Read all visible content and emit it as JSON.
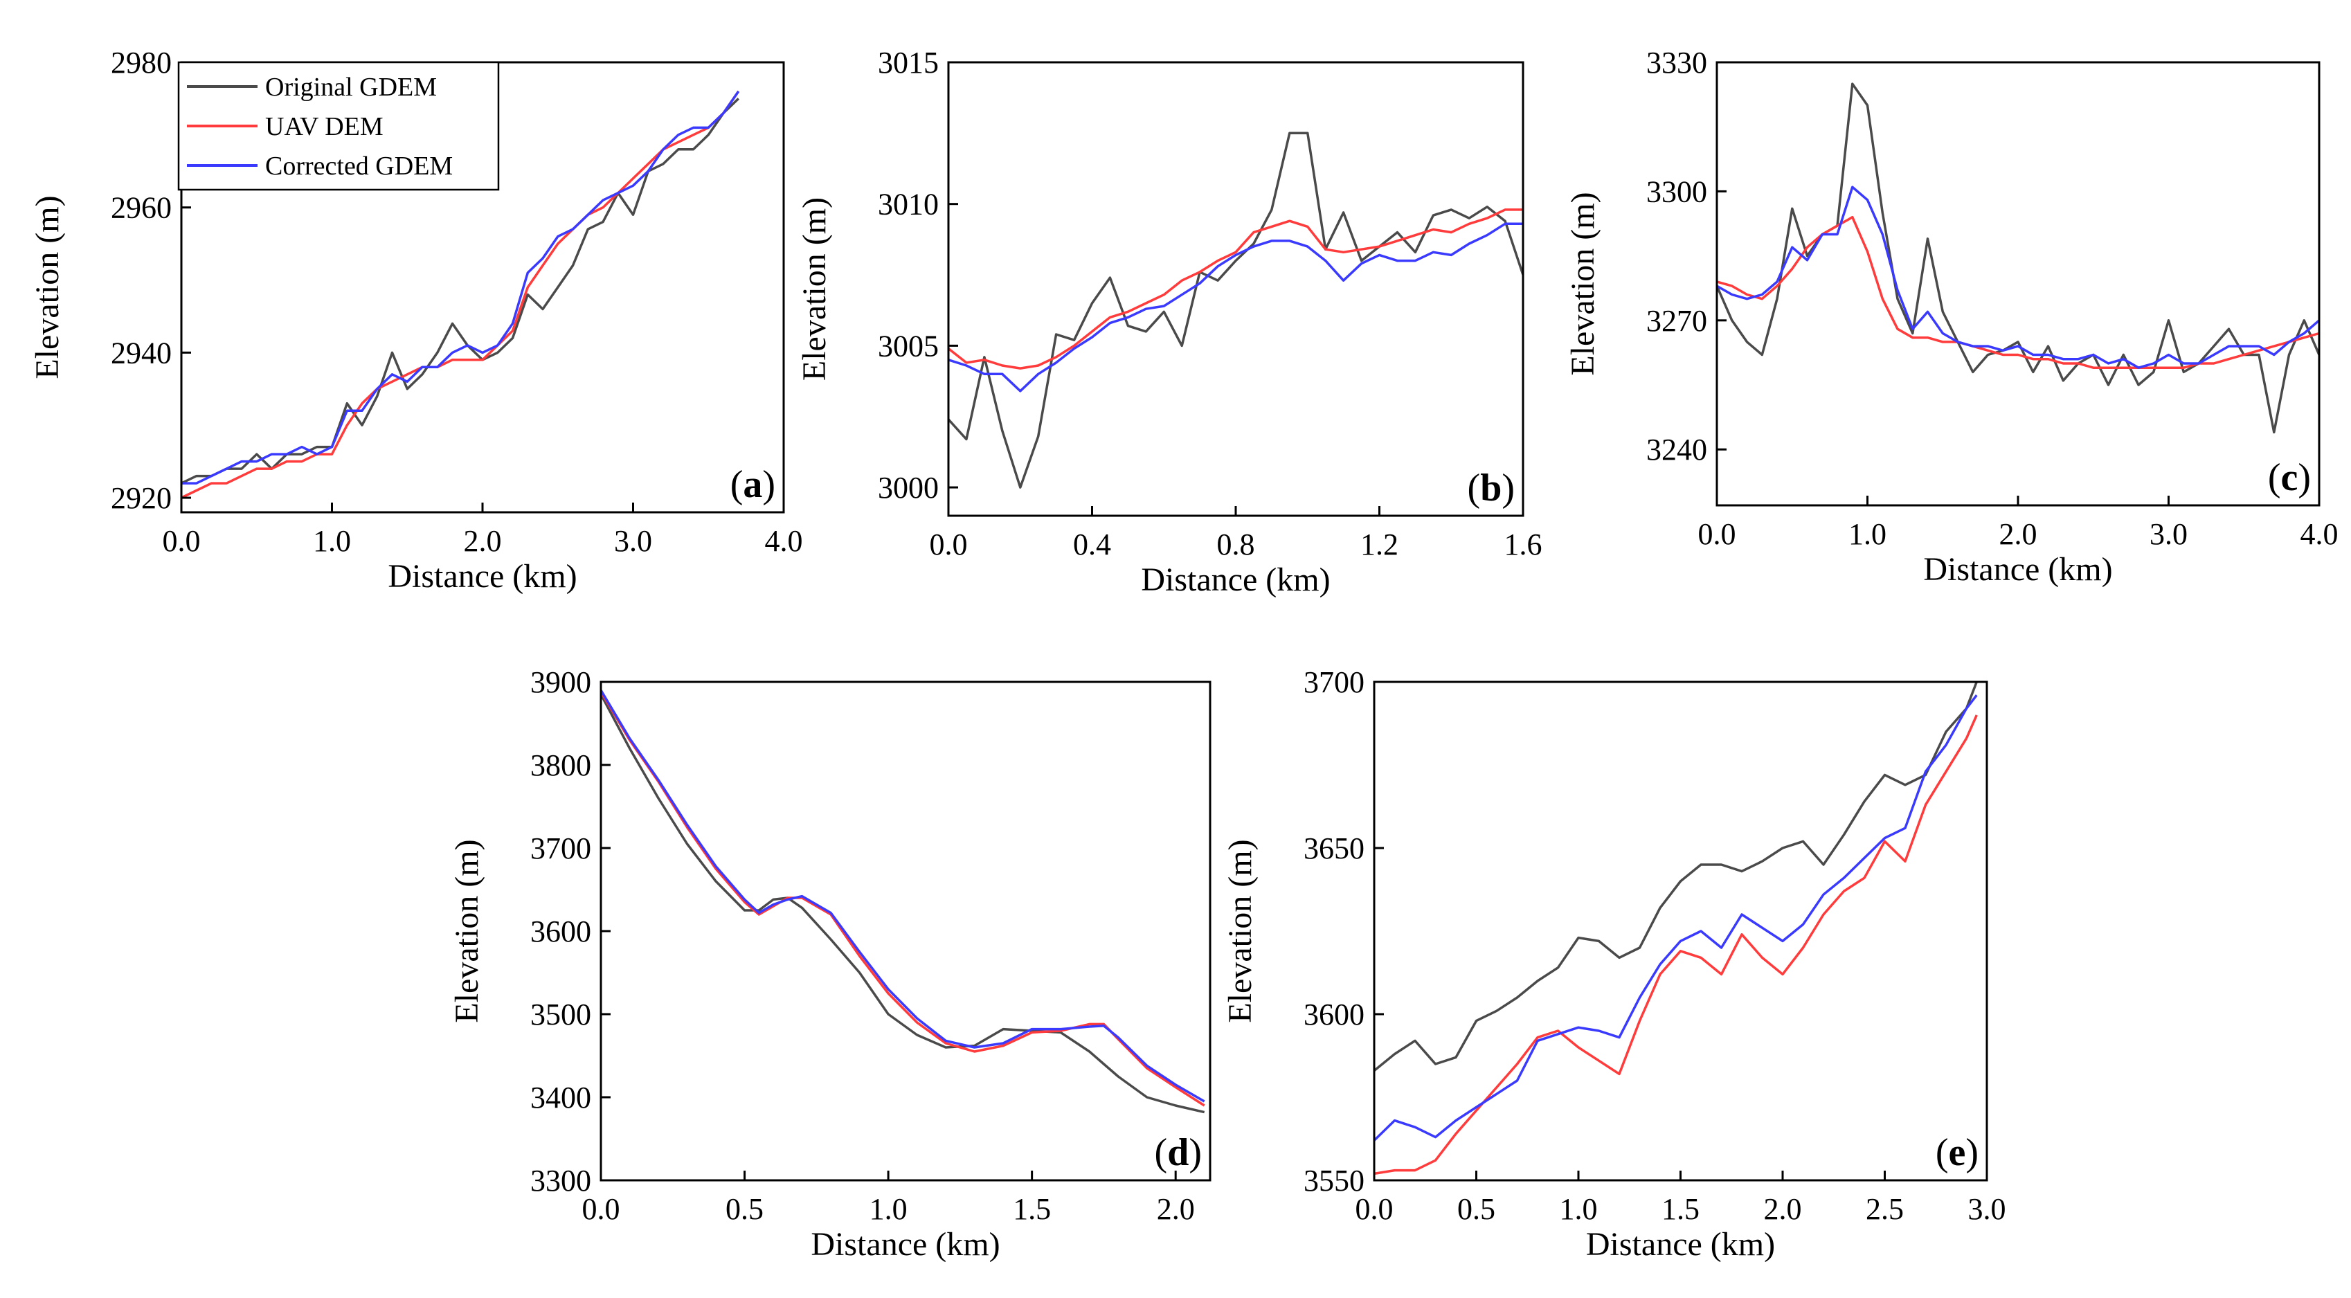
{
  "figure": {
    "legend": [
      "Original GDEM",
      "UAV DEM",
      "Corrected GDEM"
    ]
  },
  "colors": {
    "original": "#4a4a4a",
    "uav": "#ff3b3b",
    "corrected": "#3a3aff"
  },
  "chart_data": [
    {
      "type": "line",
      "panel": "a",
      "xlabel": "Distance (km)",
      "ylabel": "Elevation  (m)",
      "xlim": [
        0,
        4
      ],
      "ylim": [
        2918,
        2980
      ],
      "xticks": [
        0,
        1,
        2,
        3,
        4
      ],
      "xtick_labels": [
        "0.0",
        "1.0",
        "2.0",
        "3.0",
        "4.0"
      ],
      "yticks": [
        2920,
        2940,
        2960,
        2980
      ],
      "ytick_labels": [
        "2920",
        "2940",
        "2960",
        "2980"
      ],
      "x": [
        0,
        0.1,
        0.2,
        0.3,
        0.4,
        0.5,
        0.6,
        0.7,
        0.8,
        0.9,
        1.0,
        1.1,
        1.2,
        1.3,
        1.4,
        1.5,
        1.6,
        1.7,
        1.8,
        1.9,
        2.0,
        2.1,
        2.2,
        2.3,
        2.4,
        2.5,
        2.6,
        2.7,
        2.8,
        2.9,
        3.0,
        3.1,
        3.2,
        3.3,
        3.4,
        3.5,
        3.6,
        3.7
      ],
      "series": [
        {
          "name": "Original GDEM",
          "key": "original",
          "values": [
            2922,
            2923,
            2923,
            2924,
            2924,
            2926,
            2924,
            2926,
            2926,
            2927,
            2927,
            2933,
            2930,
            2934,
            2940,
            2935,
            2937,
            2940,
            2944,
            2941,
            2939,
            2940,
            2942,
            2948,
            2946,
            2949,
            2952,
            2957,
            2958,
            2962,
            2959,
            2965,
            2966,
            2968,
            2968,
            2970,
            2973,
            2975
          ]
        },
        {
          "name": "UAV DEM",
          "key": "uav",
          "values": [
            2920,
            2921,
            2922,
            2922,
            2923,
            2924,
            2924,
            2925,
            2925,
            2926,
            2926,
            2930,
            2933,
            2935,
            2936,
            2937,
            2938,
            2938,
            2939,
            2939,
            2939,
            2941,
            2943,
            2949,
            2952,
            2955,
            2957,
            2959,
            2960,
            2962,
            2964,
            2966,
            2968,
            2969,
            2970,
            2971,
            2973,
            2976
          ]
        },
        {
          "name": "Corrected GDEM",
          "key": "corrected",
          "values": [
            2922,
            2922,
            2923,
            2924,
            2925,
            2925,
            2926,
            2926,
            2927,
            2926,
            2927,
            2932,
            2932,
            2935,
            2937,
            2936,
            2938,
            2938,
            2940,
            2941,
            2940,
            2941,
            2944,
            2951,
            2953,
            2956,
            2957,
            2959,
            2961,
            2962,
            2963,
            2965,
            2968,
            2970,
            2971,
            2971,
            2973,
            2976
          ]
        }
      ]
    },
    {
      "type": "line",
      "panel": "b",
      "xlabel": "Distance (km)",
      "ylabel": "Elevation  (m)",
      "xlim": [
        0,
        1.6
      ],
      "ylim": [
        2999,
        3015
      ],
      "xticks": [
        0,
        0.4,
        0.8,
        1.2,
        1.6
      ],
      "xtick_labels": [
        "0.0",
        "0.4",
        "0.8",
        "1.2",
        "1.6"
      ],
      "yticks": [
        3000,
        3005,
        3010,
        3015
      ],
      "ytick_labels": [
        "3000",
        "3005",
        "3010",
        "3015"
      ],
      "x": [
        0,
        0.05,
        0.1,
        0.15,
        0.2,
        0.25,
        0.3,
        0.35,
        0.4,
        0.45,
        0.5,
        0.55,
        0.6,
        0.65,
        0.7,
        0.75,
        0.8,
        0.85,
        0.9,
        0.95,
        1.0,
        1.05,
        1.1,
        1.15,
        1.2,
        1.25,
        1.3,
        1.35,
        1.4,
        1.45,
        1.5,
        1.55,
        1.6
      ],
      "series": [
        {
          "name": "Original GDEM",
          "key": "original",
          "values": [
            3002.4,
            3001.7,
            3004.6,
            3002.0,
            3000.0,
            3001.8,
            3005.4,
            3005.2,
            3006.5,
            3007.4,
            3005.7,
            3005.5,
            3006.2,
            3005.0,
            3007.6,
            3007.3,
            3008.0,
            3008.6,
            3009.8,
            3012.5,
            3012.5,
            3008.4,
            3009.7,
            3008.0,
            3008.5,
            3009.0,
            3008.3,
            3009.6,
            3009.8,
            3009.5,
            3009.9,
            3009.4,
            3007.5
          ]
        },
        {
          "name": "UAV DEM",
          "key": "uav",
          "values": [
            3004.9,
            3004.4,
            3004.5,
            3004.3,
            3004.2,
            3004.3,
            3004.6,
            3005.0,
            3005.5,
            3006.0,
            3006.2,
            3006.5,
            3006.8,
            3007.3,
            3007.6,
            3008.0,
            3008.3,
            3009.0,
            3009.2,
            3009.4,
            3009.2,
            3008.4,
            3008.3,
            3008.4,
            3008.5,
            3008.7,
            3008.9,
            3009.1,
            3009.0,
            3009.3,
            3009.5,
            3009.8,
            3009.8
          ]
        },
        {
          "name": "Corrected GDEM",
          "key": "corrected",
          "values": [
            3004.5,
            3004.3,
            3004.0,
            3004.0,
            3003.4,
            3004.0,
            3004.4,
            3004.9,
            3005.3,
            3005.8,
            3006.0,
            3006.3,
            3006.4,
            3006.8,
            3007.2,
            3007.8,
            3008.2,
            3008.5,
            3008.7,
            3008.7,
            3008.5,
            3008.0,
            3007.3,
            3007.9,
            3008.2,
            3008.0,
            3008.0,
            3008.3,
            3008.2,
            3008.6,
            3008.9,
            3009.3,
            3009.3
          ]
        }
      ]
    },
    {
      "type": "line",
      "panel": "c",
      "xlabel": "Distance (km)",
      "ylabel": "Elevation  (m)",
      "xlim": [
        0,
        4
      ],
      "ylim": [
        3227,
        3330
      ],
      "xticks": [
        0,
        1,
        2,
        3,
        4
      ],
      "xtick_labels": [
        "0.0",
        "1.0",
        "2.0",
        "3.0",
        "4.0"
      ],
      "yticks": [
        3240,
        3270,
        3300,
        3330
      ],
      "ytick_labels": [
        "3240",
        "3270",
        "3300",
        "3330"
      ],
      "x": [
        0,
        0.1,
        0.2,
        0.3,
        0.4,
        0.5,
        0.6,
        0.7,
        0.8,
        0.9,
        1.0,
        1.1,
        1.2,
        1.3,
        1.4,
        1.5,
        1.6,
        1.7,
        1.8,
        1.9,
        2.0,
        2.1,
        2.2,
        2.3,
        2.4,
        2.5,
        2.6,
        2.7,
        2.8,
        2.9,
        3.0,
        3.1,
        3.2,
        3.3,
        3.4,
        3.5,
        3.6,
        3.7,
        3.8,
        3.9,
        4.0
      ],
      "series": [
        {
          "name": "Original GDEM",
          "key": "original",
          "values": [
            3278,
            3270,
            3265,
            3262,
            3275,
            3296,
            3285,
            3290,
            3292,
            3325,
            3320,
            3295,
            3275,
            3267,
            3289,
            3272,
            3265,
            3258,
            3262,
            3263,
            3265,
            3258,
            3264,
            3256,
            3260,
            3262,
            3255,
            3262,
            3255,
            3258,
            3270,
            3258,
            3260,
            3264,
            3268,
            3262,
            3262,
            3244,
            3262,
            3270,
            3262
          ]
        },
        {
          "name": "UAV DEM",
          "key": "uav",
          "values": [
            3279,
            3278,
            3276,
            3275,
            3278,
            3282,
            3287,
            3290,
            3292,
            3294,
            3286,
            3275,
            3268,
            3266,
            3266,
            3265,
            3265,
            3264,
            3263,
            3262,
            3262,
            3261,
            3261,
            3260,
            3260,
            3259,
            3259,
            3259,
            3259,
            3259,
            3259,
            3259,
            3260,
            3260,
            3261,
            3262,
            3263,
            3264,
            3265,
            3266,
            3267
          ]
        },
        {
          "name": "Corrected GDEM",
          "key": "corrected",
          "values": [
            3278,
            3276,
            3275,
            3276,
            3279,
            3287,
            3284,
            3290,
            3290,
            3301,
            3298,
            3290,
            3277,
            3268,
            3272,
            3267,
            3265,
            3264,
            3264,
            3263,
            3264,
            3262,
            3262,
            3261,
            3261,
            3262,
            3260,
            3261,
            3259,
            3260,
            3262,
            3260,
            3260,
            3262,
            3264,
            3264,
            3264,
            3262,
            3265,
            3267,
            3270
          ]
        }
      ]
    },
    {
      "type": "line",
      "panel": "d",
      "xlabel": "Distance (km)",
      "ylabel": "Elevation  (m)",
      "xlim": [
        0,
        2.12
      ],
      "ylim": [
        3300,
        3900
      ],
      "xticks": [
        0,
        0.5,
        1,
        1.5,
        2
      ],
      "xtick_labels": [
        "0.0",
        "0.5",
        "1.0",
        "1.5",
        "2.0"
      ],
      "yticks": [
        3300,
        3400,
        3500,
        3600,
        3700,
        3800,
        3900
      ],
      "ytick_labels": [
        "3300",
        "3400",
        "3500",
        "3600",
        "3700",
        "3800",
        "3900"
      ],
      "x": [
        0,
        0.1,
        0.2,
        0.3,
        0.4,
        0.5,
        0.55,
        0.6,
        0.65,
        0.7,
        0.8,
        0.9,
        1.0,
        1.1,
        1.2,
        1.3,
        1.4,
        1.5,
        1.6,
        1.7,
        1.75,
        1.8,
        1.9,
        2.0,
        2.1
      ],
      "series": [
        {
          "name": "Original GDEM",
          "key": "original",
          "values": [
            3885,
            3820,
            3760,
            3705,
            3660,
            3625,
            3625,
            3638,
            3640,
            3628,
            3590,
            3550,
            3500,
            3475,
            3460,
            3462,
            3482,
            3480,
            3478,
            3455,
            3440,
            3425,
            3400,
            3390,
            3382
          ]
        },
        {
          "name": "UAV DEM",
          "key": "uav",
          "values": [
            3888,
            3830,
            3780,
            3725,
            3675,
            3635,
            3620,
            3630,
            3640,
            3640,
            3620,
            3570,
            3525,
            3490,
            3465,
            3455,
            3462,
            3478,
            3480,
            3488,
            3488,
            3470,
            3435,
            3412,
            3390
          ]
        },
        {
          "name": "Corrected GDEM",
          "key": "corrected",
          "values": [
            3890,
            3832,
            3782,
            3728,
            3678,
            3638,
            3622,
            3632,
            3638,
            3642,
            3622,
            3575,
            3530,
            3495,
            3468,
            3460,
            3465,
            3482,
            3482,
            3485,
            3486,
            3472,
            3438,
            3415,
            3395
          ]
        }
      ]
    },
    {
      "type": "line",
      "panel": "e",
      "xlabel": "Distance (km)",
      "ylabel": "Elevation  (m)",
      "xlim": [
        0,
        3.0
      ],
      "ylim": [
        3550,
        3700
      ],
      "xticks": [
        0,
        0.5,
        1,
        1.5,
        2,
        2.5,
        3
      ],
      "xtick_labels": [
        "0.0",
        "0.5",
        "1.0",
        "1.5",
        "2.0",
        "2.5",
        "3.0"
      ],
      "yticks": [
        3550,
        3600,
        3650,
        3700
      ],
      "ytick_labels": [
        "3550",
        "3600",
        "3650",
        "3700"
      ],
      "x": [
        0,
        0.1,
        0.2,
        0.3,
        0.4,
        0.5,
        0.6,
        0.7,
        0.8,
        0.9,
        1.0,
        1.1,
        1.2,
        1.3,
        1.4,
        1.5,
        1.6,
        1.7,
        1.8,
        1.9,
        2.0,
        2.1,
        2.2,
        2.3,
        2.4,
        2.5,
        2.6,
        2.7,
        2.8,
        2.9,
        2.95
      ],
      "series": [
        {
          "name": "Original GDEM",
          "key": "original",
          "values": [
            3583,
            3588,
            3592,
            3585,
            3587,
            3598,
            3601,
            3605,
            3610,
            3614,
            3623,
            3622,
            3617,
            3620,
            3632,
            3640,
            3645,
            3645,
            3643,
            3646,
            3650,
            3652,
            3645,
            3654,
            3664,
            3672,
            3669,
            3672,
            3685,
            3692,
            3700
          ]
        },
        {
          "name": "UAV DEM",
          "key": "uav",
          "values": [
            3552,
            3553,
            3553,
            3556,
            3564,
            3571,
            3578,
            3585,
            3593,
            3595,
            3590,
            3586,
            3582,
            3598,
            3612,
            3619,
            3617,
            3612,
            3624,
            3617,
            3612,
            3620,
            3630,
            3637,
            3641,
            3652,
            3646,
            3663,
            3673,
            3683,
            3690
          ]
        },
        {
          "name": "Corrected GDEM",
          "key": "corrected",
          "values": [
            3562,
            3568,
            3566,
            3563,
            3568,
            3572,
            3576,
            3580,
            3592,
            3594,
            3596,
            3595,
            3593,
            3605,
            3615,
            3622,
            3625,
            3620,
            3630,
            3626,
            3622,
            3627,
            3636,
            3641,
            3647,
            3653,
            3656,
            3673,
            3681,
            3692,
            3696
          ]
        }
      ]
    }
  ]
}
